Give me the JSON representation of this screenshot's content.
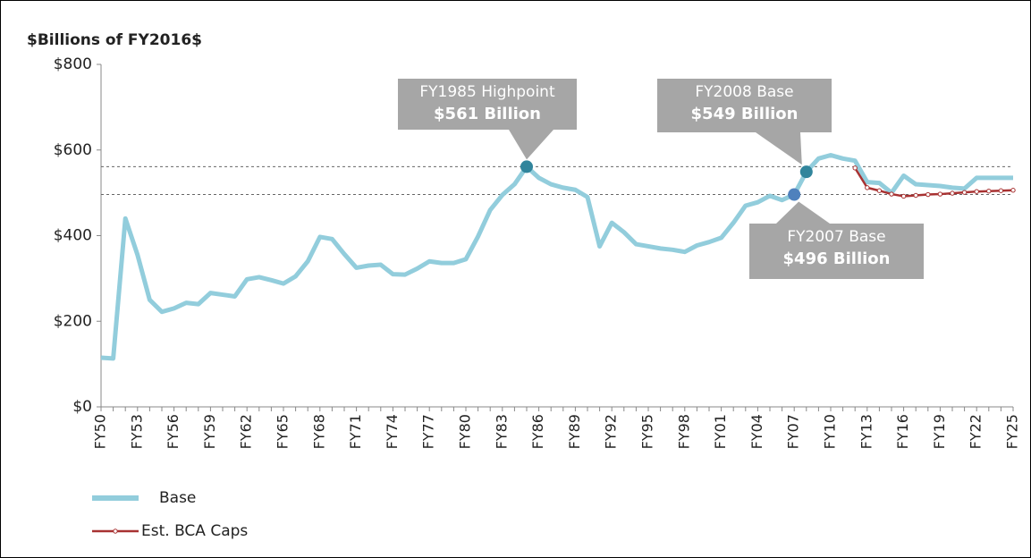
{
  "chart_data": {
    "type": "line",
    "title": "$Billions of FY2016$",
    "categories": [
      "FY50",
      null,
      null,
      "FY53",
      null,
      null,
      "FY56",
      null,
      null,
      "FY59",
      null,
      null,
      "FY62",
      null,
      null,
      "FY65",
      null,
      null,
      "FY68",
      null,
      null,
      "FY71",
      null,
      null,
      "FY74",
      null,
      null,
      "FY77",
      null,
      null,
      "FY80",
      null,
      null,
      "FY83",
      null,
      null,
      "FY86",
      null,
      null,
      "FY89",
      null,
      null,
      "FY92",
      null,
      null,
      "FY95",
      null,
      null,
      "FY98",
      null,
      null,
      "FY01",
      null,
      null,
      "FY04",
      null,
      null,
      "FY07",
      null,
      null,
      "FY10",
      null,
      null,
      "FY13",
      null,
      null,
      "FY16",
      null,
      null,
      "FY19",
      null,
      null,
      "FY22",
      null,
      null,
      "FY25"
    ],
    "series": [
      {
        "name": "Base",
        "color": "#92cddc",
        "values": [
          115,
          113,
          440,
          355,
          250,
          222,
          230,
          243,
          240,
          266,
          262,
          258,
          298,
          303,
          296,
          288,
          305,
          340,
          397,
          392,
          357,
          325,
          330,
          332,
          310,
          309,
          323,
          340,
          336,
          336,
          345,
          398,
          460,
          495,
          520,
          561,
          535,
          520,
          512,
          507,
          490,
          375,
          430,
          408,
          380,
          375,
          370,
          367,
          362,
          377,
          385,
          395,
          430,
          470,
          478,
          493,
          483,
          496,
          549,
          580,
          588,
          580,
          575,
          525,
          523,
          500,
          540,
          520,
          518,
          516,
          512,
          510,
          535,
          535,
          535,
          535
        ]
      },
      {
        "name": "Est. BCA Caps",
        "color": "#a83232",
        "values": [
          null,
          null,
          null,
          null,
          null,
          null,
          null,
          null,
          null,
          null,
          null,
          null,
          null,
          null,
          null,
          null,
          null,
          null,
          null,
          null,
          null,
          null,
          null,
          null,
          null,
          null,
          null,
          null,
          null,
          null,
          null,
          null,
          null,
          null,
          null,
          null,
          null,
          null,
          null,
          null,
          null,
          null,
          null,
          null,
          null,
          null,
          null,
          null,
          null,
          null,
          null,
          null,
          null,
          null,
          null,
          null,
          null,
          null,
          null,
          null,
          null,
          null,
          558,
          512,
          505,
          497,
          492,
          494,
          496,
          497,
          499,
          501,
          503,
          504,
          505,
          506
        ]
      }
    ],
    "ylim": [
      0,
      800
    ],
    "yticks": [
      {
        "value": 0,
        "label": "$0"
      },
      {
        "value": 200,
        "label": "$200"
      },
      {
        "value": 400,
        "label": "$400"
      },
      {
        "value": 600,
        "label": "$600"
      },
      {
        "value": 800,
        "label": "$800"
      }
    ],
    "reference_lines": [
      561,
      496
    ],
    "annotations": [
      {
        "lines": [
          "FY1985 Highpoint",
          "$561 Billion"
        ],
        "value": 561,
        "color": "#31859c"
      },
      {
        "lines": [
          "FY2008 Base",
          "$549 Billion"
        ],
        "value": 549,
        "color": "#31859c"
      },
      {
        "lines": [
          "FY2007 Base",
          "$496 Billion"
        ],
        "value": 496,
        "color": "#4f81bd"
      }
    ]
  }
}
